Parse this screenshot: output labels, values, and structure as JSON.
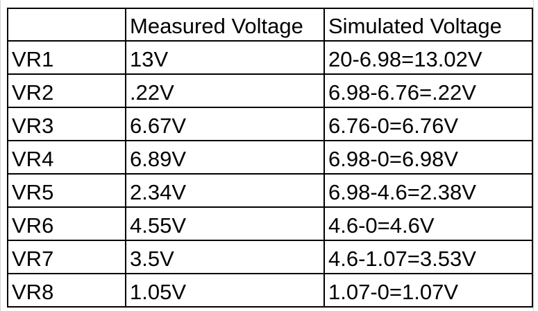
{
  "table": {
    "headers": [
      "",
      "Measured Voltage",
      "Simulated Voltage"
    ],
    "rows": [
      [
        "VR1",
        "13V",
        "20-6.98=13.02V"
      ],
      [
        "VR2",
        ".22V",
        "6.98-6.76=.22V"
      ],
      [
        "VR3",
        "6.67V",
        "6.76-0=6.76V"
      ],
      [
        "VR4",
        "6.89V",
        "6.98-0=6.98V"
      ],
      [
        "VR5",
        "2.34V",
        "6.98-4.6=2.38V"
      ],
      [
        "VR6",
        "4.55V",
        "4.6-0=4.6V"
      ],
      [
        "VR7",
        "3.5V",
        "4.6-1.07=3.53V"
      ],
      [
        "VR8",
        "1.05V",
        "1.07-0=1.07V"
      ]
    ]
  }
}
